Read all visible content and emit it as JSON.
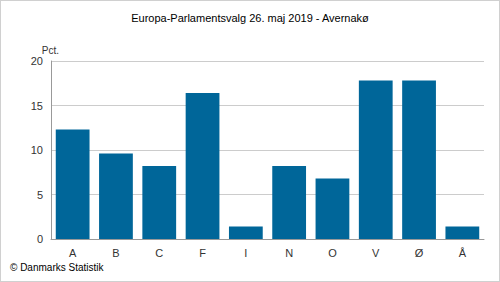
{
  "chart_data": {
    "type": "bar",
    "title": "Europa-Parlamentsvalg 26. maj 2019 - Avernakø",
    "ylabel": "Pct.",
    "source": "© Danmarks Statistik",
    "categories": [
      "A",
      "B",
      "C",
      "F",
      "I",
      "N",
      "O",
      "V",
      "Ø",
      "Å"
    ],
    "values": [
      12.3,
      9.6,
      8.2,
      16.4,
      1.4,
      8.2,
      6.8,
      17.8,
      17.8,
      1.4
    ],
    "color": "#006699",
    "ylim": [
      0,
      20
    ],
    "yticks": [
      0,
      5,
      10,
      15,
      20
    ],
    "grid": true
  }
}
